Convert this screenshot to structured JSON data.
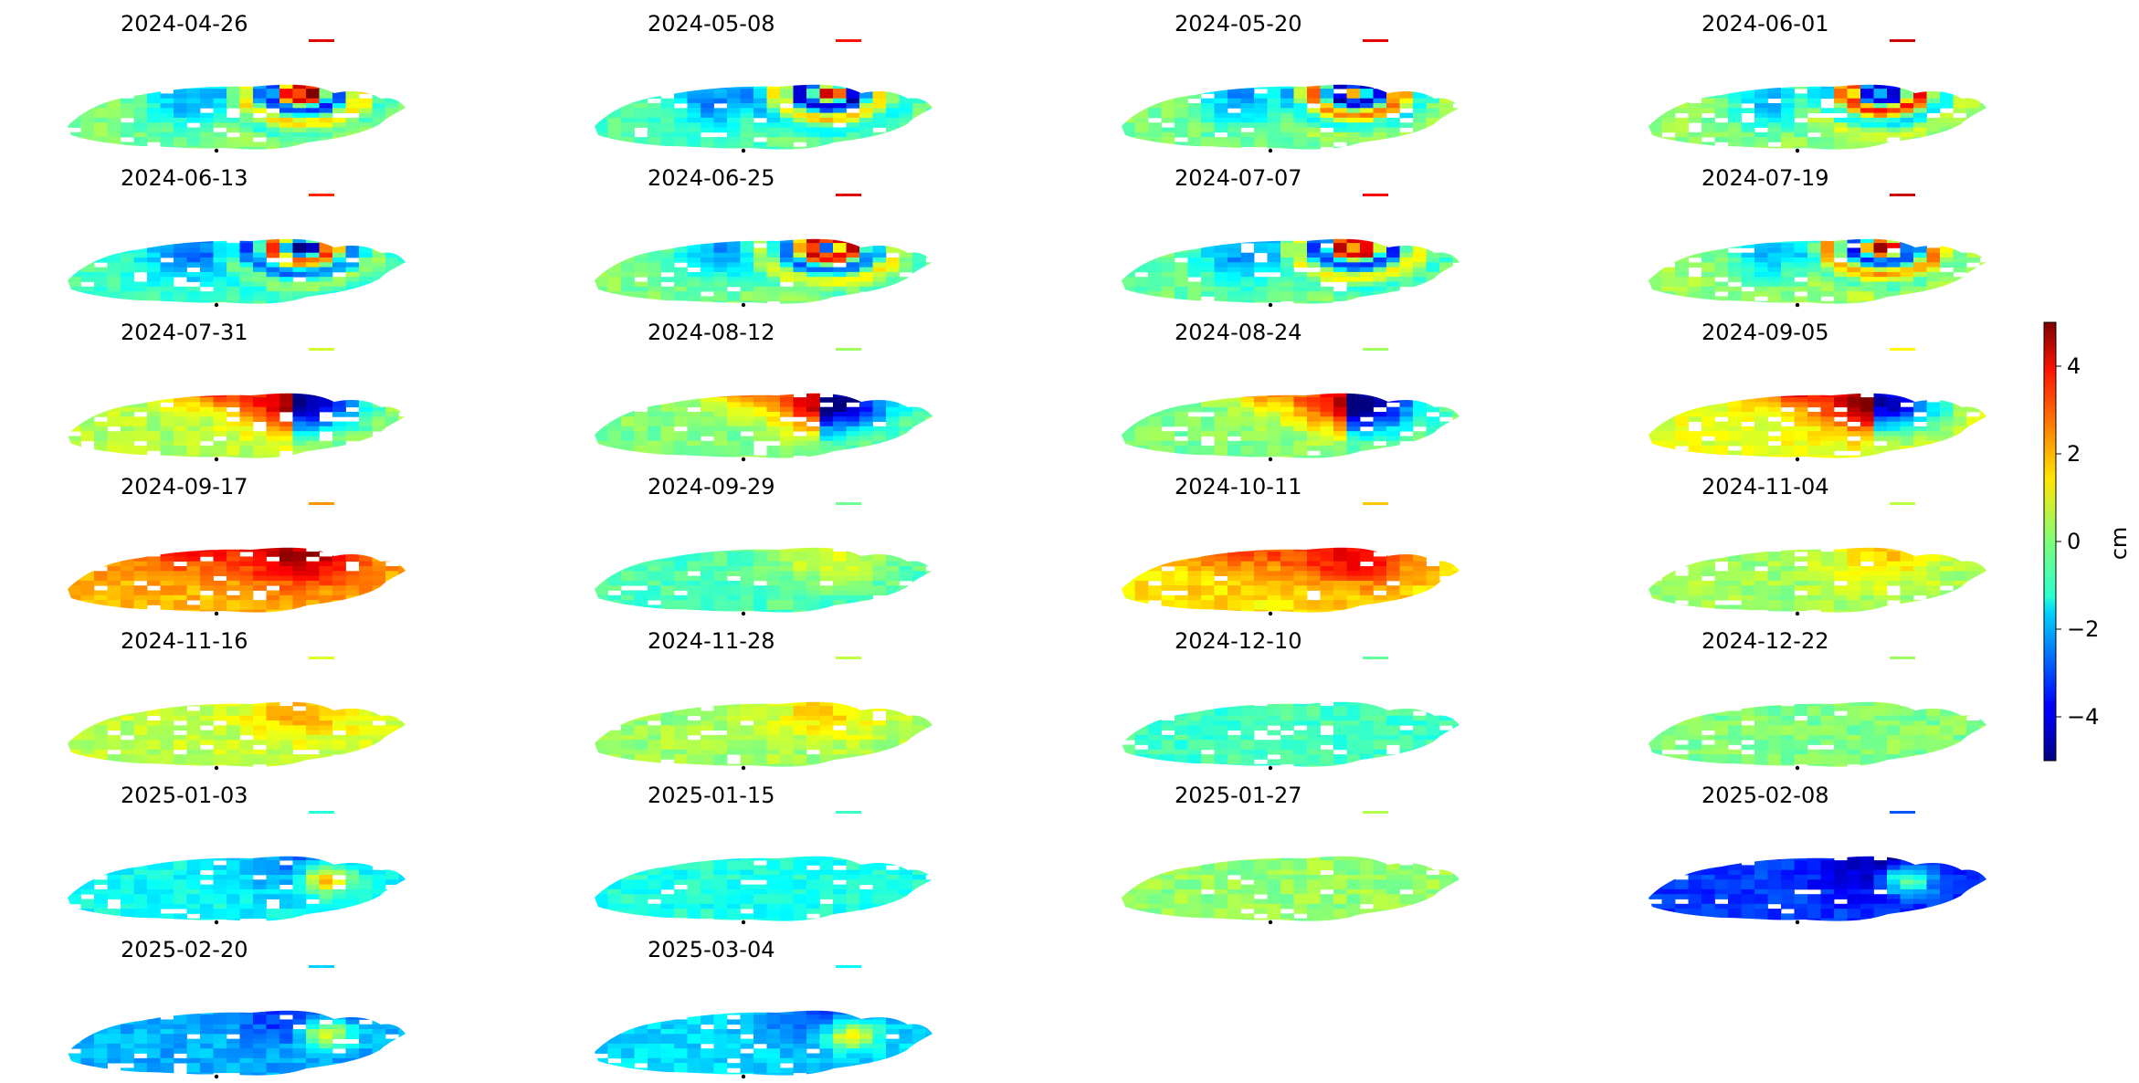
{
  "chart_data": {
    "type": "heatmap",
    "title": "",
    "panels": [
      {
        "date": "2024-04-26",
        "pattern": "fringes",
        "base": 0.0
      },
      {
        "date": "2024-05-08",
        "pattern": "fringes",
        "base": -0.4
      },
      {
        "date": "2024-05-20",
        "pattern": "fringes",
        "base": 0.0
      },
      {
        "date": "2024-06-01",
        "pattern": "fringes",
        "base": 0.2
      },
      {
        "date": "2024-06-13",
        "pattern": "fringes",
        "base": -0.6
      },
      {
        "date": "2024-06-25",
        "pattern": "fringes",
        "base": 0.0
      },
      {
        "date": "2024-07-07",
        "pattern": "fringes",
        "base": -0.2
      },
      {
        "date": "2024-07-19",
        "pattern": "fringes",
        "base": 0.3
      },
      {
        "date": "2024-07-31",
        "pattern": "dipole",
        "base": 0.5
      },
      {
        "date": "2024-08-12",
        "pattern": "dipole",
        "base": 0.0
      },
      {
        "date": "2024-08-24",
        "pattern": "dipole",
        "base": 0.0
      },
      {
        "date": "2024-09-05",
        "pattern": "dipole",
        "base": 1.0
      },
      {
        "date": "2024-09-17",
        "pattern": "uplift",
        "base": 2.0
      },
      {
        "date": "2024-09-29",
        "pattern": "mild",
        "base": -0.5
      },
      {
        "date": "2024-10-11",
        "pattern": "uplift",
        "base": 1.5
      },
      {
        "date": "2024-11-04",
        "pattern": "mild",
        "base": 0.3
      },
      {
        "date": "2024-11-16",
        "pattern": "mild",
        "base": 0.6
      },
      {
        "date": "2024-11-28",
        "pattern": "mild",
        "base": 0.3
      },
      {
        "date": "2024-12-10",
        "pattern": "flat",
        "base": -0.6
      },
      {
        "date": "2024-12-22",
        "pattern": "flat",
        "base": 0.0
      },
      {
        "date": "2025-01-03",
        "pattern": "subsidence",
        "base": -1.2
      },
      {
        "date": "2025-01-15",
        "pattern": "flat",
        "base": -1.0
      },
      {
        "date": "2025-01-27",
        "pattern": "flat",
        "base": 0.2
      },
      {
        "date": "2025-02-08",
        "pattern": "subsidence",
        "base": -3.2
      },
      {
        "date": "2025-02-20",
        "pattern": "subsidence",
        "base": -2.0
      },
      {
        "date": "2025-03-04",
        "pattern": "subsidence",
        "base": -1.6
      }
    ],
    "grid_columns": 4,
    "colormap": "jet",
    "colorbar": {
      "label": "cm",
      "min": -5,
      "max": 5,
      "ticks": [
        4,
        2,
        0,
        -2,
        -4
      ],
      "tick_labels": [
        "4",
        "2",
        "0",
        "−2",
        "−4"
      ]
    },
    "axes": "off",
    "grid": false
  }
}
